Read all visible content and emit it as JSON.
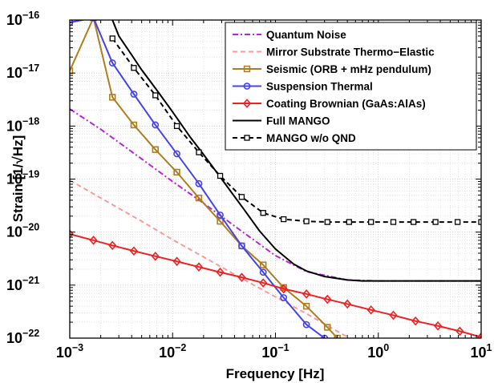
{
  "chart_data": {
    "type": "line",
    "xlabel": "Frequency [Hz]",
    "ylabel": "Strain [1/√Hz]",
    "xscale": "log",
    "yscale": "log",
    "xlim": [
      0.001,
      10
    ],
    "ylim": [
      1e-22,
      1e-16
    ],
    "x_ticks": [
      {
        "value": 0.001,
        "base": "10",
        "exp": "−3"
      },
      {
        "value": 0.01,
        "base": "10",
        "exp": "−2"
      },
      {
        "value": 0.1,
        "base": "10",
        "exp": "−1"
      },
      {
        "value": 1,
        "base": "10",
        "exp": "0"
      },
      {
        "value": 10,
        "base": "10",
        "exp": "1"
      }
    ],
    "y_ticks": [
      {
        "value": 1e-22,
        "base": "10",
        "exp": "−22"
      },
      {
        "value": 1e-21,
        "base": "10",
        "exp": "−21"
      },
      {
        "value": 1e-20,
        "base": "10",
        "exp": "−20"
      },
      {
        "value": 1e-19,
        "base": "10",
        "exp": "−19"
      },
      {
        "value": 1e-18,
        "base": "10",
        "exp": "−18"
      },
      {
        "value": 1e-17,
        "base": "10",
        "exp": "−17"
      },
      {
        "value": 1e-16,
        "base": "10",
        "exp": "−16"
      }
    ],
    "grid": true,
    "legend_position": "top-right",
    "series": [
      {
        "name": "Quantum Noise",
        "color": "#bb22dd",
        "dash": "dashdot",
        "marker": "none",
        "x": [
          0.001,
          0.002,
          0.005,
          0.01,
          0.02,
          0.05,
          0.1,
          0.2,
          0.5,
          1,
          2,
          5,
          10
        ],
        "y": [
          2.1e-18,
          8.7e-19,
          2.4e-19,
          9e-20,
          3.5e-20,
          9.5e-21,
          3.6e-21,
          1.8e-21,
          1.25e-21,
          1.2e-21,
          1.2e-21,
          1.2e-21,
          1.2e-21
        ]
      },
      {
        "name": "Mirror Substrate Thermo−Elastic",
        "color": "#ff9999",
        "dash": "dash",
        "marker": "none",
        "x": [
          0.001,
          0.002,
          0.005,
          0.01,
          0.02,
          0.05,
          0.1,
          0.2,
          0.5
        ],
        "y": [
          9.5e-20,
          4.4e-20,
          1.6e-20,
          7.2e-21,
          3.4e-21,
          1.25e-21,
          6e-22,
          2.9e-22,
          1.05e-22
        ]
      },
      {
        "name": "Seismic (ORB + mHz pendulum)",
        "color": "#b07d1c",
        "dash": "solid",
        "marker": "square",
        "x": [
          0.001,
          0.0017,
          0.0026,
          0.0042,
          0.0068,
          0.011,
          0.018,
          0.029,
          0.047,
          0.076,
          0.12,
          0.2,
          0.32,
          0.4
        ],
        "y": [
          1.1e-17,
          1.1e-16,
          3.5e-18,
          1.05e-18,
          3.6e-19,
          1.35e-19,
          4.4e-20,
          1.6e-20,
          5.5e-21,
          2.4e-21,
          9e-22,
          4e-22,
          1.6e-22,
          1e-22
        ]
      },
      {
        "name": "Suspension Thermal",
        "color": "#4444ee",
        "dash": "solid",
        "marker": "circle",
        "x": [
          0.001,
          0.0017,
          0.0026,
          0.0042,
          0.0068,
          0.011,
          0.018,
          0.029,
          0.047,
          0.076,
          0.12,
          0.2,
          0.3
        ],
        "y": [
          9e-17,
          1.1e-16,
          1.55e-17,
          4e-18,
          1.05e-18,
          3e-19,
          8.2e-20,
          2.1e-20,
          5.5e-21,
          1.75e-21,
          5.8e-22,
          1.8e-22,
          1e-22
        ]
      },
      {
        "name": "Coating Brownian (GaAs:AlAs)",
        "color": "#ee2222",
        "dash": "solid",
        "marker": "diamond",
        "x": [
          0.001,
          0.0017,
          0.0026,
          0.0042,
          0.0068,
          0.011,
          0.018,
          0.029,
          0.047,
          0.076,
          0.12,
          0.2,
          0.32,
          0.5,
          0.85,
          1.4,
          2.3,
          3.8,
          6.2,
          10
        ],
        "y": [
          9.2e-21,
          7e-21,
          5.6e-21,
          4.4e-21,
          3.5e-21,
          2.8e-21,
          2.2e-21,
          1.75e-21,
          1.4e-21,
          1.1e-21,
          8.5e-22,
          6.8e-22,
          5.4e-22,
          4.4e-22,
          3.4e-22,
          2.7e-22,
          2.1e-22,
          1.7e-22,
          1.35e-22,
          1.05e-22
        ]
      },
      {
        "name": "Full MANGO",
        "color": "#000000",
        "dash": "solid",
        "marker": "none",
        "x": [
          0.0026,
          0.003,
          0.004,
          0.005,
          0.007,
          0.01,
          0.015,
          0.02,
          0.03,
          0.05,
          0.07,
          0.1,
          0.15,
          0.2,
          0.3,
          0.5,
          0.7,
          1,
          2,
          5,
          10
        ],
        "y": [
          1e-16,
          5e-17,
          2.2e-17,
          1.15e-17,
          4.8e-18,
          1.85e-18,
          6e-19,
          2.9e-19,
          1e-19,
          2.6e-20,
          1.05e-20,
          4.8e-21,
          2.5e-21,
          1.85e-21,
          1.45e-21,
          1.25e-21,
          1.2e-21,
          1.2e-21,
          1.2e-21,
          1.2e-21,
          1.2e-21
        ]
      },
      {
        "name": "MANGO w/o QND",
        "color": "#000000",
        "dash": "dash",
        "marker": "square-open",
        "x": [
          0.0026,
          0.0042,
          0.0068,
          0.011,
          0.018,
          0.029,
          0.047,
          0.076,
          0.12,
          0.2,
          0.32,
          0.52,
          0.85,
          1.4,
          2.2,
          3.6,
          5.9,
          10
        ],
        "y": [
          4.5e-17,
          1.25e-17,
          3.8e-18,
          1e-18,
          3.2e-19,
          1.15e-19,
          4.6e-20,
          2.3e-20,
          1.75e-20,
          1.6e-20,
          1.55e-20,
          1.55e-20,
          1.55e-20,
          1.55e-20,
          1.55e-20,
          1.55e-20,
          1.55e-20,
          1.55e-20
        ]
      }
    ]
  }
}
